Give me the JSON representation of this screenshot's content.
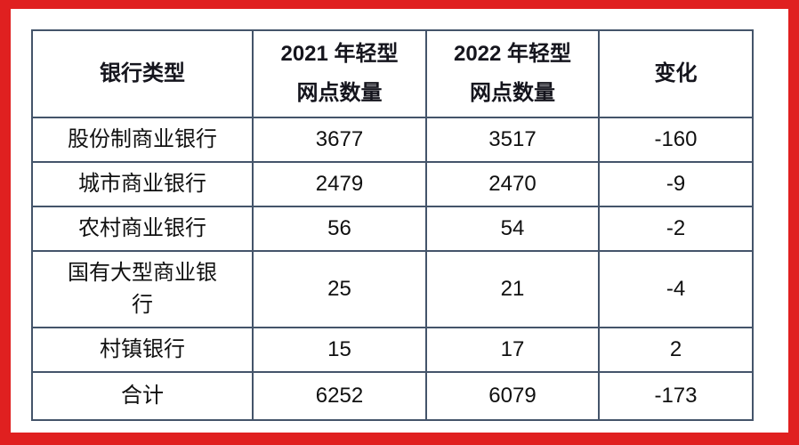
{
  "page": {
    "background_color": "#e02020",
    "panel_color": "#ffffff"
  },
  "table": {
    "border_color": "#44546a",
    "text_color": "#101010",
    "header": {
      "col0": "银行类型",
      "col1_line1": "2021 年轻型",
      "col1_line2": "网点数量",
      "col2_line1": "2022 年轻型",
      "col2_line2": "网点数量",
      "col3": "变化"
    },
    "rows": [
      [
        "股份制商业银行",
        "3677",
        "3517",
        "-160"
      ],
      [
        "城市商业银行",
        "2479",
        "2470",
        "-9"
      ],
      [
        "农村商业银行",
        "56",
        "54",
        "-2"
      ],
      [
        "国有大型商业银行",
        "25",
        "21",
        "-4"
      ],
      [
        "村镇银行",
        "15",
        "17",
        "2"
      ],
      [
        "合计",
        "6252",
        "6079",
        "-173"
      ]
    ]
  },
  "chart_data": {
    "type": "table",
    "title": "",
    "columns": [
      "银行类型",
      "2021 年轻型网点数量",
      "2022 年轻型网点数量",
      "变化"
    ],
    "rows": [
      [
        "股份制商业银行",
        3677,
        3517,
        -160
      ],
      [
        "城市商业银行",
        2479,
        2470,
        -9
      ],
      [
        "农村商业银行",
        56,
        54,
        -2
      ],
      [
        "国有大型商业银行",
        25,
        21,
        -4
      ],
      [
        "村镇银行",
        15,
        17,
        2
      ],
      [
        "合计",
        6252,
        6079,
        -173
      ]
    ]
  }
}
